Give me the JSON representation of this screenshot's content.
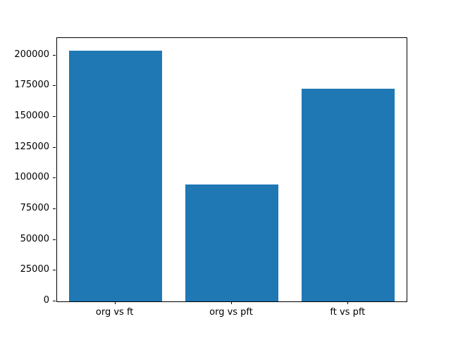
{
  "figure": {
    "background": "#ffffff",
    "axis_color": "#000000"
  },
  "chart_data": {
    "type": "bar",
    "title": "",
    "xlabel": "",
    "ylabel": "",
    "categories": [
      "org vs ft",
      "org vs pft",
      "ft vs pft"
    ],
    "values": [
      204000,
      95000,
      173000
    ],
    "bar_color": "#1f77b4",
    "bar_width_fraction": 0.8,
    "ylim": [
      0,
      214200
    ],
    "yticks": [
      0,
      25000,
      50000,
      75000,
      100000,
      125000,
      150000,
      175000,
      200000
    ],
    "grid": false,
    "legend": "none"
  }
}
